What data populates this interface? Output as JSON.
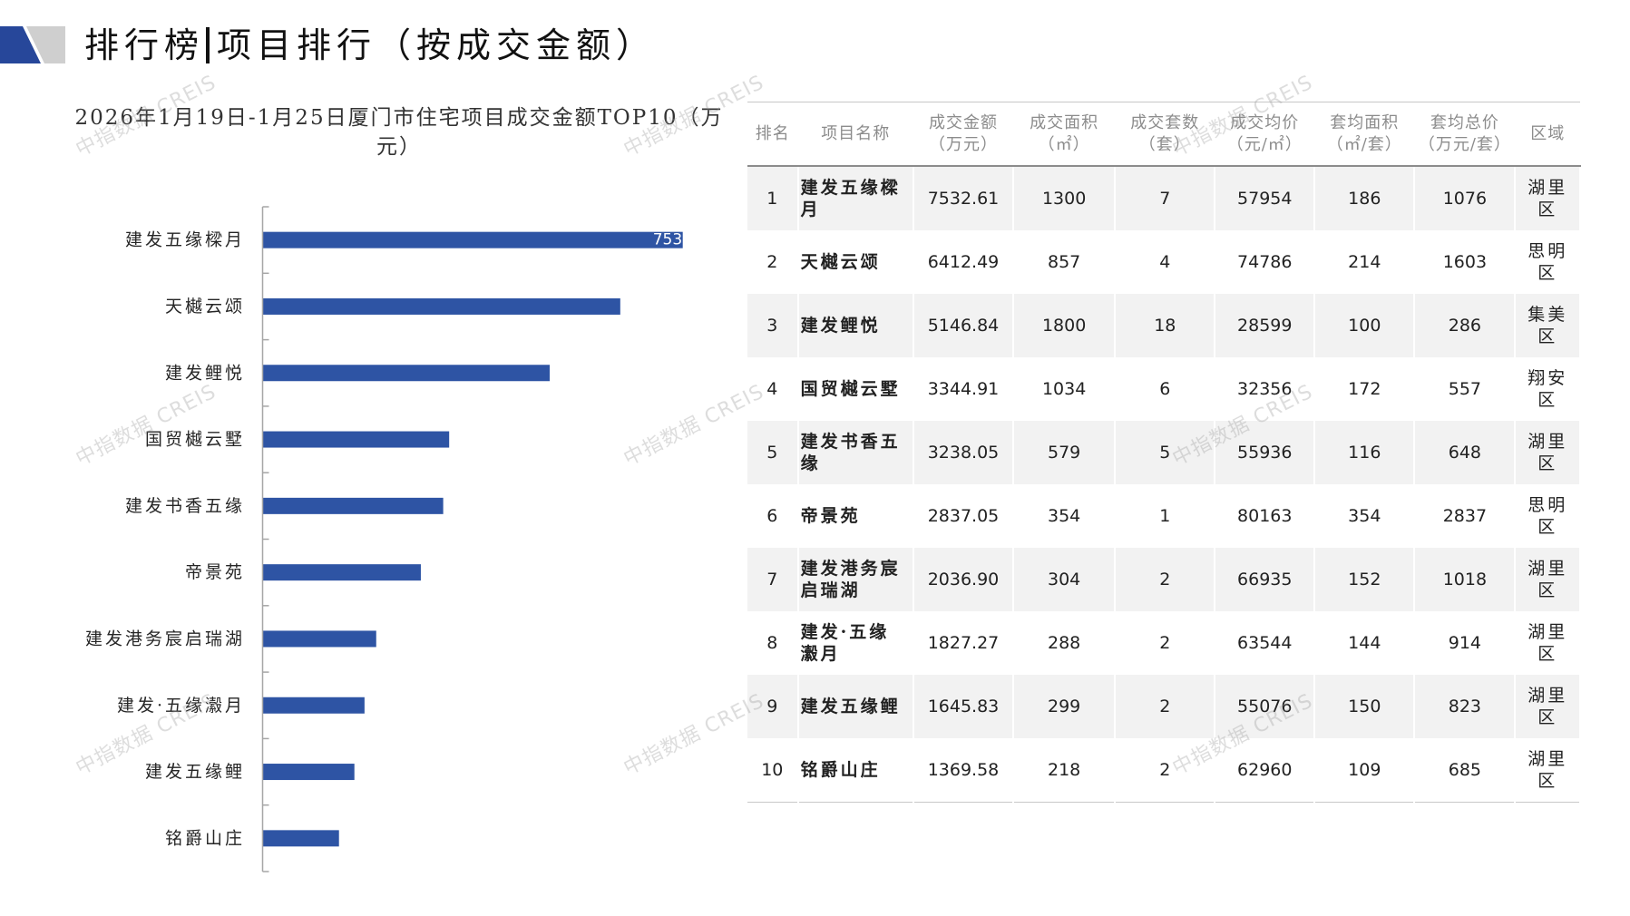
{
  "header": {
    "title_main": "排行榜",
    "title_sub": "项目排行（按成交金额）"
  },
  "watermark": "中指数据 CREIS",
  "chart_data": {
    "type": "bar",
    "orientation": "horizontal",
    "title": "2026年1月19日-1月25日厦门市住宅项目成交金额TOP10（万元）",
    "categories": [
      "建发五缘樑月",
      "天樾云颂",
      "建发鲤悦",
      "国贸樾云墅",
      "建发书香五缘",
      "帝景苑",
      "建发港务宸启瑞湖",
      "建发·五缘瀫月",
      "建发五缘鲤",
      "铭爵山庄"
    ],
    "values": [
      7532.61,
      6412.49,
      5146.84,
      3344.91,
      3238.05,
      2837.05,
      2036.9,
      1827.27,
      1645.83,
      1369.58
    ],
    "xlim": [
      0,
      7532.61
    ],
    "grid": false,
    "legend": "none",
    "bar_color": "#2e54a4",
    "data_label_indices": [
      0
    ]
  },
  "table": {
    "columns": [
      "排名",
      "项目名称",
      "成交金额（万元）",
      "成交面积（㎡）",
      "成交套数（套）",
      "成交均价（元/㎡）",
      "套均面积（㎡/套）",
      "套均总价（万元/套）",
      "区域"
    ],
    "rows": [
      [
        "1",
        "建发五缘樑月",
        "7532.61",
        "1300",
        "7",
        "57954",
        "186",
        "1076",
        "湖里区"
      ],
      [
        "2",
        "天樾云颂",
        "6412.49",
        "857",
        "4",
        "74786",
        "214",
        "1603",
        "思明区"
      ],
      [
        "3",
        "建发鲤悦",
        "5146.84",
        "1800",
        "18",
        "28599",
        "100",
        "286",
        "集美区"
      ],
      [
        "4",
        "国贸樾云墅",
        "3344.91",
        "1034",
        "6",
        "32356",
        "172",
        "557",
        "翔安区"
      ],
      [
        "5",
        "建发书香五缘",
        "3238.05",
        "579",
        "5",
        "55936",
        "116",
        "648",
        "湖里区"
      ],
      [
        "6",
        "帝景苑",
        "2837.05",
        "354",
        "1",
        "80163",
        "354",
        "2837",
        "思明区"
      ],
      [
        "7",
        "建发港务宸启瑞湖",
        "2036.90",
        "304",
        "2",
        "66935",
        "152",
        "1018",
        "湖里区"
      ],
      [
        "8",
        "建发·五缘瀫月",
        "1827.27",
        "288",
        "2",
        "63544",
        "144",
        "914",
        "湖里区"
      ],
      [
        "9",
        "建发五缘鲤",
        "1645.83",
        "299",
        "2",
        "55076",
        "150",
        "823",
        "湖里区"
      ],
      [
        "10",
        "铭爵山庄",
        "1369.58",
        "218",
        "2",
        "62960",
        "109",
        "685",
        "湖里区"
      ]
    ]
  }
}
